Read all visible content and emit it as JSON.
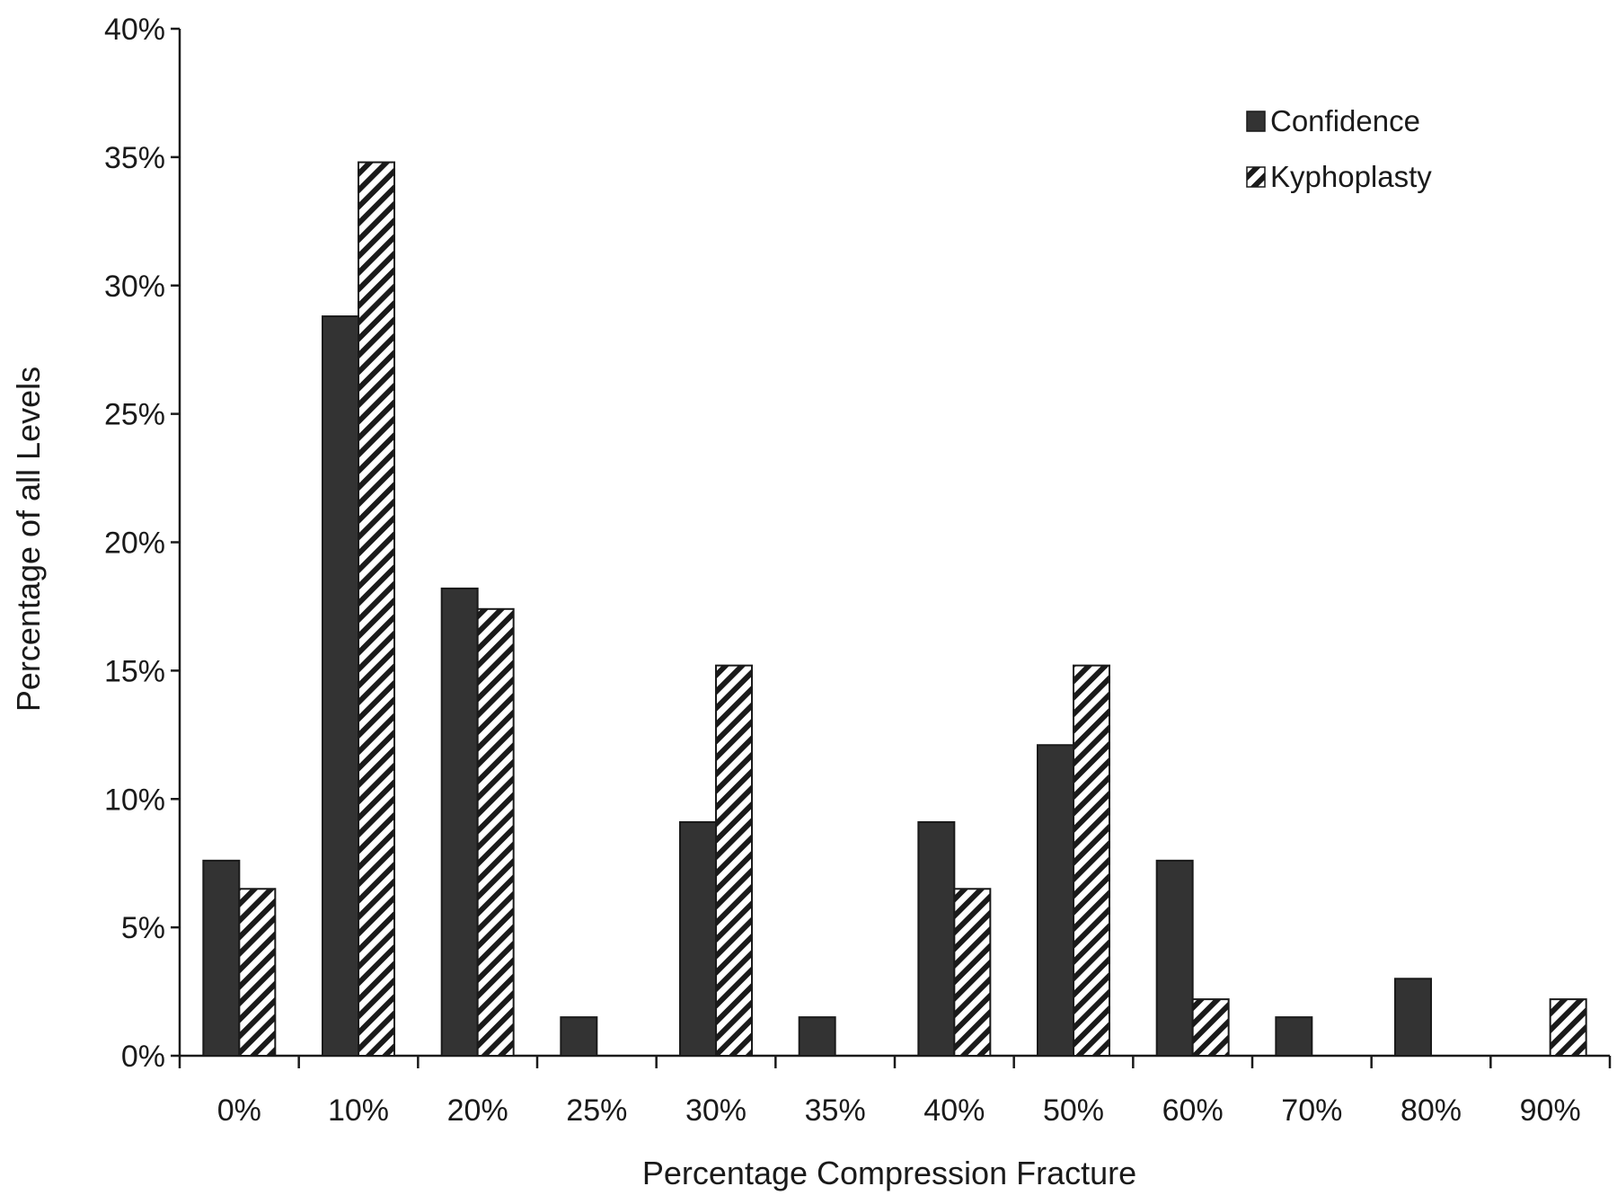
{
  "chart_data": {
    "type": "bar",
    "xlabel": "Percentage Compression Fracture",
    "ylabel": "Percentage of all Levels",
    "categories": [
      "0%",
      "10%",
      "20%",
      "25%",
      "30%",
      "35%",
      "40%",
      "50%",
      "60%",
      "70%",
      "80%",
      "90%"
    ],
    "yticks": [
      "0%",
      "5%",
      "10%",
      "15%",
      "20%",
      "25%",
      "30%",
      "35%",
      "40%"
    ],
    "ylim": [
      0,
      40
    ],
    "grid": false,
    "legend_position": "top-right",
    "series": [
      {
        "name": "Confidence",
        "style": "solid",
        "color": "#333333",
        "values": [
          7.6,
          28.8,
          18.2,
          1.5,
          9.1,
          1.5,
          9.1,
          12.1,
          7.6,
          1.5,
          3.0,
          0
        ]
      },
      {
        "name": "Kyphoplasty",
        "style": "hatched",
        "color": "#1a1a1a",
        "values": [
          6.5,
          34.8,
          17.4,
          0,
          15.2,
          0,
          6.5,
          15.2,
          2.2,
          0,
          0,
          2.2
        ]
      }
    ]
  }
}
